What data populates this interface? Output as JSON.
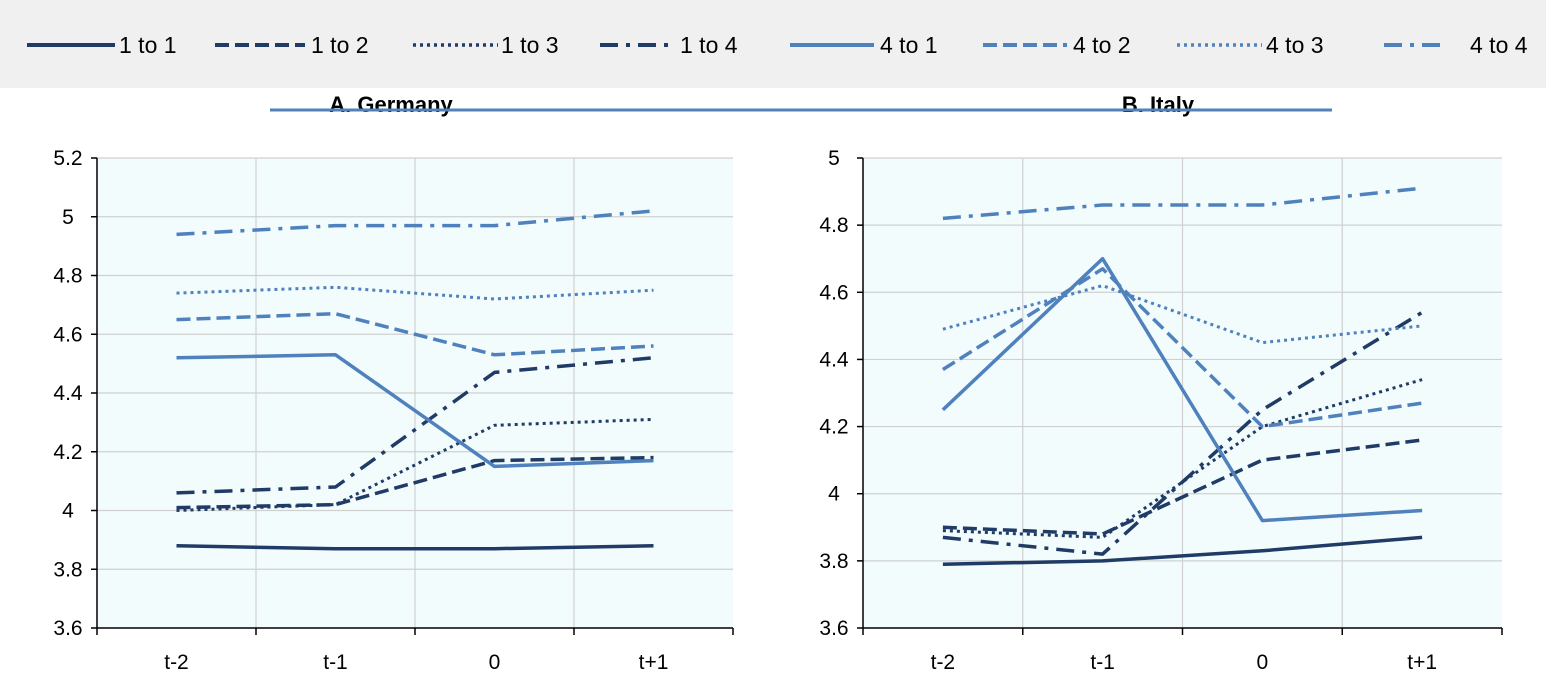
{
  "chart_data": [
    {
      "type": "line",
      "title": "A. Germany",
      "categories": [
        "t-2",
        "t-1",
        "0",
        "t+1"
      ],
      "ylim": [
        3.6,
        5.2
      ],
      "yticks": [
        "3.6",
        "3.8",
        "4",
        "4.2",
        "4.4",
        "4.6",
        "4.8",
        "5",
        "5.2"
      ],
      "grid": true,
      "series": [
        {
          "name": "1 to 1",
          "values": [
            3.88,
            3.87,
            3.87,
            3.88
          ]
        },
        {
          "name": "1 to 2",
          "values": [
            4.01,
            4.02,
            4.17,
            4.18
          ]
        },
        {
          "name": "1 to 3",
          "values": [
            4.0,
            4.02,
            4.29,
            4.31
          ]
        },
        {
          "name": "1 to 4",
          "values": [
            4.06,
            4.08,
            4.47,
            4.52
          ]
        },
        {
          "name": "4 to 1",
          "values": [
            4.52,
            4.53,
            4.15,
            4.17
          ]
        },
        {
          "name": "4 to 2",
          "values": [
            4.65,
            4.67,
            4.53,
            4.56
          ]
        },
        {
          "name": "4 to 3",
          "values": [
            4.74,
            4.76,
            4.72,
            4.75
          ]
        },
        {
          "name": "4 to 4",
          "values": [
            4.94,
            4.97,
            4.97,
            5.02
          ]
        }
      ]
    },
    {
      "type": "line",
      "title": "B. Italy",
      "categories": [
        "t-2",
        "t-1",
        "0",
        "t+1"
      ],
      "ylim": [
        3.6,
        5.0
      ],
      "yticks": [
        "3.6",
        "3.8",
        "4",
        "4.2",
        "4.4",
        "4.6",
        "4.8",
        "5"
      ],
      "grid": true,
      "series": [
        {
          "name": "1 to 1",
          "values": [
            3.79,
            3.8,
            3.83,
            3.87
          ]
        },
        {
          "name": "1 to 2",
          "values": [
            3.9,
            3.88,
            4.1,
            4.16
          ]
        },
        {
          "name": "1 to 3",
          "values": [
            3.89,
            3.87,
            4.2,
            4.34
          ]
        },
        {
          "name": "1 to 4",
          "values": [
            3.87,
            3.82,
            4.25,
            4.54
          ]
        },
        {
          "name": "4 to 1",
          "values": [
            4.25,
            4.7,
            3.92,
            3.95
          ]
        },
        {
          "name": "4 to 2",
          "values": [
            4.37,
            4.67,
            4.2,
            4.27
          ]
        },
        {
          "name": "4 to 3",
          "values": [
            4.49,
            4.62,
            4.45,
            4.5
          ]
        },
        {
          "name": "4 to 4",
          "values": [
            4.82,
            4.86,
            4.86,
            4.91
          ]
        }
      ]
    }
  ],
  "legend": {
    "position": "top",
    "items": [
      "1 to 1",
      "1 to 2",
      "1 to 3",
      "1 to 4",
      "4 to 1",
      "4 to 2",
      "4 to 3",
      "4 to 4"
    ]
  },
  "colors": {
    "dark_blue": "#1f3b66",
    "light_blue": "#4f81bd",
    "plot_background": "#f2fcfd",
    "legend_background": "#f0f0f0",
    "grid": "#d0d0d0"
  },
  "styles": [
    "solid",
    "dashed",
    "dotted",
    "dashdot",
    "solid",
    "dashed",
    "dotted",
    "dashdot"
  ]
}
